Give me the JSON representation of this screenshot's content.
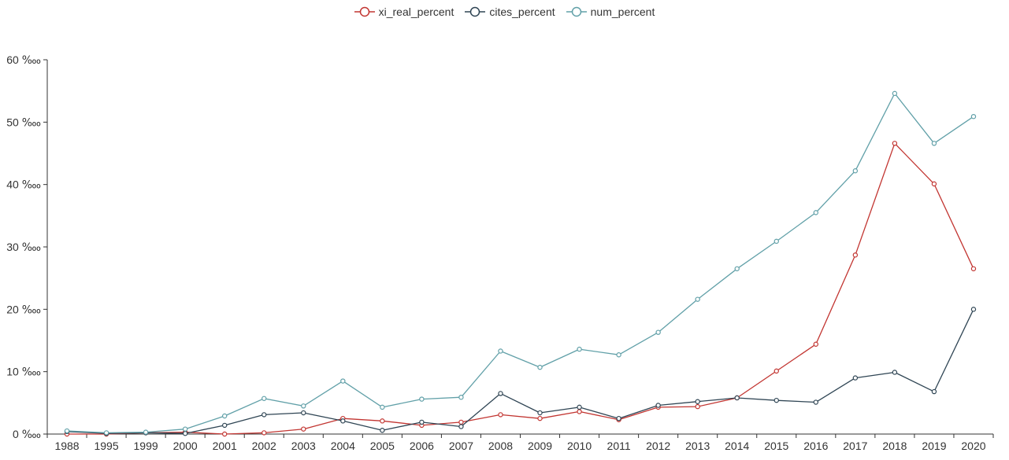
{
  "chart_data": {
    "type": "line",
    "categories": [
      "1988",
      "1995",
      "1999",
      "2000",
      "2001",
      "2002",
      "2003",
      "2004",
      "2005",
      "2006",
      "2007",
      "2008",
      "2009",
      "2010",
      "2011",
      "2012",
      "2013",
      "2014",
      "2015",
      "2016",
      "2017",
      "2018",
      "2019",
      "2020"
    ],
    "y_unit": "‱",
    "ylim": [
      0,
      60
    ],
    "y_ticks": [
      0,
      10,
      20,
      30,
      40,
      50,
      60
    ],
    "y_tick_labels": [
      "0 ‱",
      "10 ‱",
      "20 ‱",
      "30 ‱",
      "40 ‱",
      "50 ‱",
      "60 ‱"
    ],
    "grid": false,
    "legend_position": "top-center",
    "series": [
      {
        "name": "xi_real_percent",
        "color": "#c23531",
        "values": [
          0.0,
          0.0,
          0.2,
          0.3,
          0.0,
          0.2,
          0.8,
          2.5,
          2.1,
          1.4,
          1.9,
          3.1,
          2.5,
          3.6,
          2.3,
          4.3,
          4.4,
          5.8,
          10.1,
          14.4,
          28.7,
          46.6,
          40.1,
          26.5
        ]
      },
      {
        "name": "cites_percent",
        "color": "#2f4554",
        "values": [
          0.4,
          0.1,
          0.2,
          0.1,
          1.4,
          3.1,
          3.4,
          2.1,
          0.6,
          1.9,
          1.2,
          6.5,
          3.4,
          4.3,
          2.5,
          4.6,
          5.2,
          5.8,
          5.4,
          5.1,
          9.0,
          9.9,
          6.8,
          20.0
        ]
      },
      {
        "name": "num_percent",
        "color": "#61a0a8",
        "values": [
          0.5,
          0.2,
          0.3,
          0.8,
          2.9,
          5.7,
          4.5,
          8.5,
          4.3,
          5.6,
          5.9,
          13.3,
          10.7,
          13.6,
          12.7,
          16.3,
          21.6,
          26.5,
          30.9,
          35.5,
          42.2,
          54.6,
          46.6,
          50.9
        ]
      }
    ]
  }
}
